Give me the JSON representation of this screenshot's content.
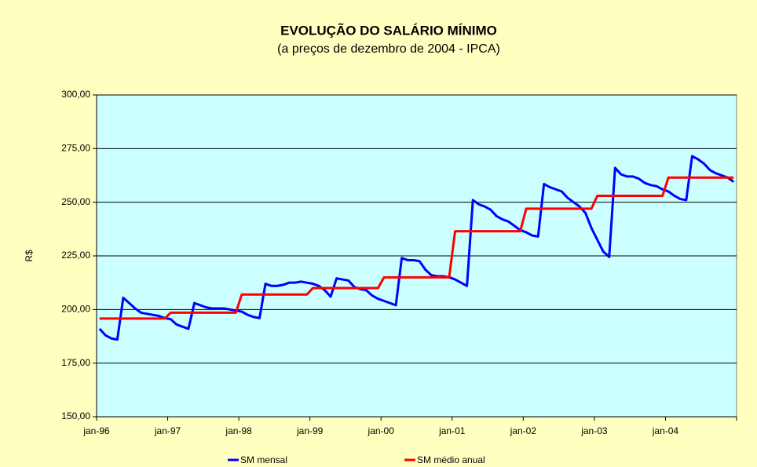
{
  "chart_data": {
    "type": "line",
    "title": "EVOLUÇÃO DO SALÁRIO MÍNIMO",
    "subtitle": "(a preços de dezembro de 2004 - IPCA)",
    "y_label": "R$",
    "categories": [
      "jan-96",
      null,
      null,
      null,
      null,
      null,
      null,
      null,
      null,
      null,
      null,
      null,
      "jan-97",
      null,
      null,
      null,
      null,
      null,
      null,
      null,
      null,
      null,
      null,
      null,
      "jan-98",
      null,
      null,
      null,
      null,
      null,
      null,
      null,
      null,
      null,
      null,
      null,
      "jan-99",
      null,
      null,
      null,
      null,
      null,
      null,
      null,
      null,
      null,
      null,
      null,
      "jan-00",
      null,
      null,
      null,
      null,
      null,
      null,
      null,
      null,
      null,
      null,
      null,
      "jan-01",
      null,
      null,
      null,
      null,
      null,
      null,
      null,
      null,
      null,
      null,
      null,
      "jan-02",
      null,
      null,
      null,
      null,
      null,
      null,
      null,
      null,
      null,
      null,
      null,
      "jan-03",
      null,
      null,
      null,
      null,
      null,
      null,
      null,
      null,
      null,
      null,
      null,
      "jan-04",
      null,
      null,
      null,
      null,
      null,
      null,
      null,
      null,
      null,
      null,
      null
    ],
    "series": [
      {
        "name": "SM mensal",
        "color": "#0000ff",
        "values": [
          191,
          188,
          186.5,
          186,
          205.5,
          203,
          200.5,
          198.5,
          198,
          197.5,
          197,
          196,
          195.5,
          193,
          192,
          191,
          203,
          202,
          201,
          200.5,
          200.5,
          200.5,
          200,
          199.5,
          199,
          197.5,
          196.5,
          196,
          212,
          211,
          211,
          211.5,
          212.5,
          212.5,
          213,
          212.5,
          212,
          211,
          209,
          206,
          214.5,
          214,
          213.5,
          210.5,
          209.5,
          209,
          206.5,
          205,
          204,
          203,
          202,
          224,
          223,
          223,
          222.5,
          218.5,
          216,
          215.5,
          215.5,
          215,
          214,
          212.5,
          211,
          251,
          249,
          248,
          246.5,
          243.5,
          242,
          241,
          239,
          237,
          236,
          234.5,
          234,
          258.5,
          257,
          256,
          255,
          252,
          250,
          248,
          245,
          238,
          232.5,
          227,
          224.5,
          266,
          263,
          262,
          262,
          261,
          259,
          258,
          257.5,
          256,
          255,
          253,
          251.5,
          251,
          271.5,
          270,
          268,
          265,
          263.5,
          262.5,
          261.5,
          259.5
        ]
      },
      {
        "name": "SM médio anual",
        "color": "#ff0000",
        "values": [
          195.8,
          195.8,
          195.8,
          195.8,
          195.8,
          195.8,
          195.8,
          195.8,
          195.8,
          195.8,
          195.8,
          195.8,
          198.5,
          198.5,
          198.5,
          198.5,
          198.5,
          198.5,
          198.5,
          198.5,
          198.5,
          198.5,
          198.5,
          198.5,
          207,
          207,
          207,
          207,
          207,
          207,
          207,
          207,
          207,
          207,
          207,
          207,
          210,
          210,
          210,
          210,
          210,
          210,
          210,
          210,
          210,
          210,
          210,
          210,
          215,
          215,
          215,
          215,
          215,
          215,
          215,
          215,
          215,
          215,
          215,
          215,
          236.5,
          236.5,
          236.5,
          236.5,
          236.5,
          236.5,
          236.5,
          236.5,
          236.5,
          236.5,
          236.5,
          236.5,
          247,
          247,
          247,
          247,
          247,
          247,
          247,
          247,
          247,
          247,
          247,
          247,
          253,
          253,
          253,
          253,
          253,
          253,
          253,
          253,
          253,
          253,
          253,
          253,
          261.5,
          261.5,
          261.5,
          261.5,
          261.5,
          261.5,
          261.5,
          261.5,
          261.5,
          261.5,
          261.5,
          261.5
        ]
      }
    ],
    "ylim": [
      150,
      300
    ],
    "yticks": [
      {
        "value": 150,
        "label": "150,00"
      },
      {
        "value": 175,
        "label": "175,00"
      },
      {
        "value": 200,
        "label": "200,00"
      },
      {
        "value": 225,
        "label": "225,00"
      },
      {
        "value": 250,
        "label": "250,00"
      },
      {
        "value": 275,
        "label": "275,00"
      },
      {
        "value": 300,
        "label": "300,00"
      }
    ],
    "grid": true,
    "legend": "bottom"
  }
}
